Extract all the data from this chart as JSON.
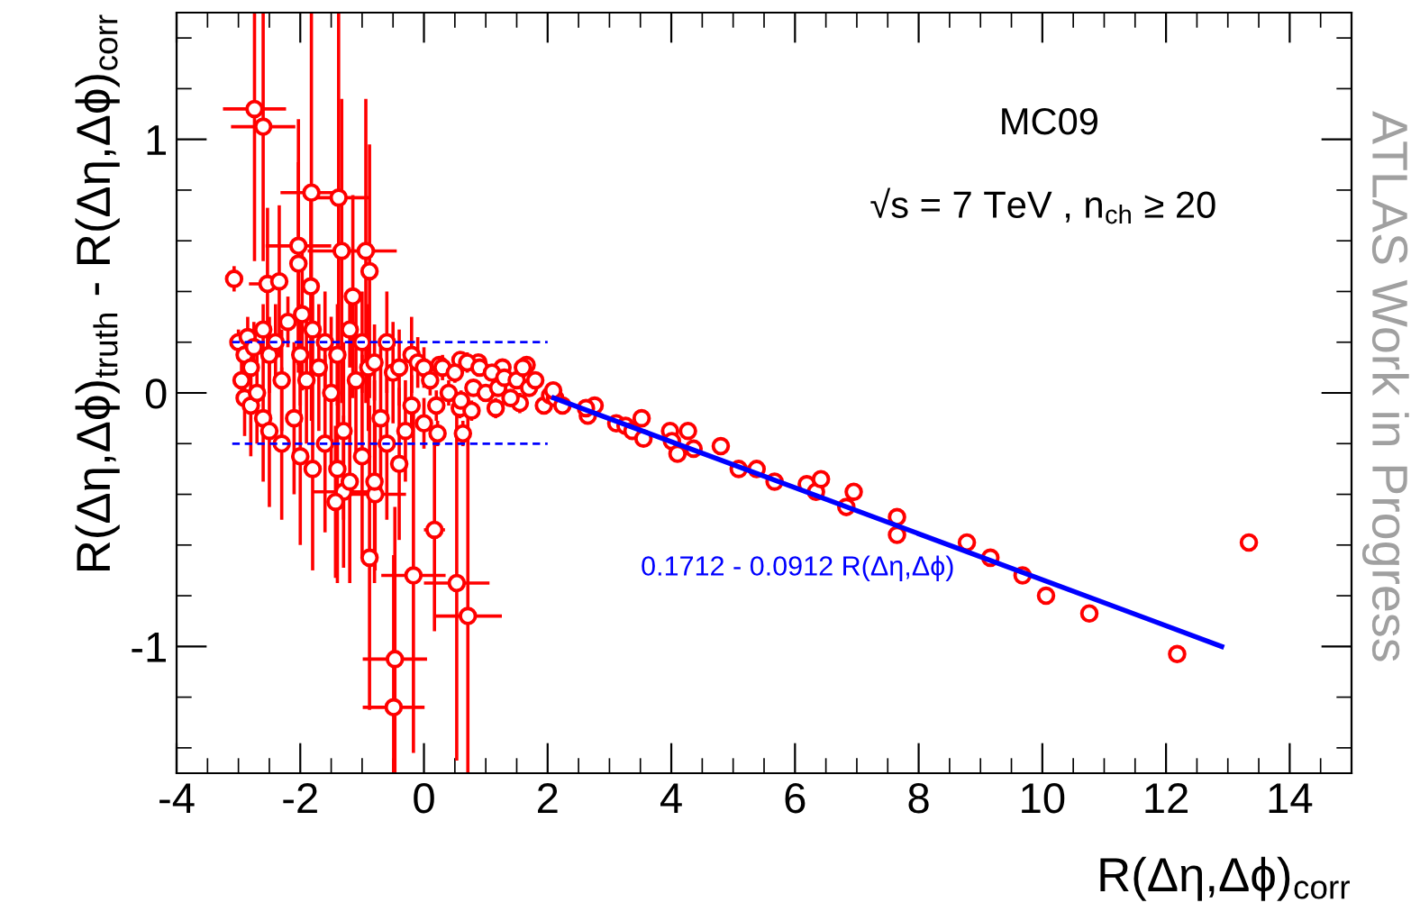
{
  "chart_data": {
    "type": "scatter",
    "xlabel": "R(Δη,Δϕ)$_{corr}$",
    "ylabel": "R(Δη,Δϕ)$_{truth}$ - R(Δη,Δϕ)$_{corr}$",
    "xlim": [
      -4,
      15
    ],
    "ylim": [
      -1.5,
      1.5
    ],
    "xticks": [
      -4,
      -2,
      0,
      2,
      4,
      6,
      8,
      10,
      12,
      14
    ],
    "yticks": [
      -1,
      0,
      1
    ],
    "grid": false,
    "legend": false,
    "marker": "circle",
    "annotations": [
      "MC09",
      "√s = 7 TeV , n$_{ch}$ ≥ 20",
      "0.1712 - 0.0912 R(Δη,Δϕ)",
      "ATLAS Work in Progress"
    ],
    "series": [
      {
        "color": "#ff0000",
        "x": [
          -2.74,
          -2.6,
          -3.07,
          -1.82,
          -1.38,
          -2.03,
          -2.03,
          -1.33,
          -0.94,
          -0.88,
          -1.15,
          -2.53,
          -2.34,
          -1.83,
          -1.97,
          -0.88,
          -0.17,
          0.17,
          0.53,
          0.71,
          -0.47,
          -0.49,
          -1.3,
          -0.79,
          -1.43,
          0.63,
          0.22,
          0.58,
          0.77,
          1.16,
          1.55,
          1.94,
          2.04,
          1.66,
          1.27,
          0.88,
          0.59,
          0.25,
          -3.0,
          -2.95,
          -2.9,
          -2.9,
          -2.85,
          -2.8,
          -2.8,
          -2.75,
          -2.7,
          -2.6,
          -2.6,
          -2.5,
          -2.5,
          -2.4,
          -2.3,
          -2.3,
          -2.2,
          -2.1,
          -2.0,
          -2.0,
          -1.9,
          -1.8,
          -1.8,
          -1.7,
          -1.6,
          -1.6,
          -1.5,
          -1.4,
          -1.4,
          -1.3,
          -1.2,
          -1.2,
          -1.1,
          -1.0,
          -1.0,
          -0.9,
          -0.8,
          -0.8,
          -0.7,
          -0.6,
          -0.6,
          -0.5,
          -0.4,
          -0.4,
          -0.3,
          -0.2,
          -0.2,
          -0.1,
          0.0,
          0.0,
          0.1,
          0.2,
          0.3,
          0.4,
          0.5,
          0.6,
          0.7,
          0.8,
          0.9,
          1.0,
          1.1,
          1.2,
          1.3,
          1.4,
          1.5,
          1.6,
          1.7,
          1.8,
          2.12,
          2.09,
          2.24,
          2.65,
          2.76,
          2.62,
          3.11,
          3.26,
          3.37,
          3.52,
          3.55,
          3.98,
          4.01,
          4.1,
          4.27,
          4.36,
          4.8,
          5.09,
          5.38,
          5.67,
          6.19,
          6.34,
          6.42,
          6.83,
          6.95,
          7.65,
          7.65,
          8.78,
          9.16,
          9.68,
          10.06,
          10.76,
          12.18,
          13.34
        ],
        "values": [
          1.12,
          1.05,
          0.45,
          0.79,
          0.77,
          0.58,
          0.51,
          0.56,
          0.56,
          0.48,
          0.38,
          0.43,
          0.44,
          0.42,
          0.31,
          -0.65,
          -0.72,
          -0.54,
          -0.75,
          -0.88,
          -1.05,
          -1.24,
          -0.39,
          -0.4,
          -0.43,
          -0.16,
          -0.16,
          -0.06,
          -0.07,
          -0.06,
          -0.04,
          -0.05,
          -0.01,
          0.11,
          0.1,
          0.12,
          0.13,
          0.11,
          0.2,
          0.05,
          0.15,
          -0.02,
          0.22,
          0.1,
          -0.05,
          0.18,
          0.0,
          0.25,
          -0.1,
          0.15,
          -0.15,
          0.2,
          0.05,
          -0.2,
          0.28,
          -0.1,
          0.15,
          -0.25,
          0.05,
          0.25,
          -0.3,
          0.1,
          -0.2,
          0.2,
          0.0,
          -0.3,
          0.15,
          -0.15,
          0.25,
          -0.35,
          0.05,
          0.2,
          -0.25,
          0.1,
          -0.35,
          0.12,
          -0.1,
          0.2,
          -0.2,
          0.08,
          -0.28,
          0.1,
          -0.15,
          0.15,
          -0.05,
          0.12,
          -0.12,
          0.1,
          0.05,
          -0.05,
          0.1,
          0.0,
          0.08,
          -0.03,
          0.12,
          0.02,
          0.1,
          0.0,
          0.08,
          0.02,
          0.06,
          -0.02,
          0.05,
          0.1,
          0.02,
          0.05,
          -0.02,
          0.01,
          -0.05,
          -0.09,
          -0.05,
          -0.06,
          -0.12,
          -0.13,
          -0.15,
          -0.1,
          -0.18,
          -0.15,
          -0.19,
          -0.24,
          -0.15,
          -0.22,
          -0.21,
          -0.3,
          -0.3,
          -0.35,
          -0.36,
          -0.39,
          -0.34,
          -0.45,
          -0.39,
          -0.49,
          -0.56,
          -0.59,
          -0.65,
          -0.72,
          -0.8,
          -0.87,
          -1.03,
          -0.59
        ],
        "errors": [
          [
            0.52,
            1.5
          ],
          [
            0.52,
            1.5
          ],
          0.05,
          [
            -0.11,
            1.5
          ],
          [
            -0.13,
            1.5
          ],
          0.5,
          0.4,
          0.6,
          0.6,
          0.5,
          0.4,
          0.3,
          0.3,
          0.4,
          0.3,
          0.6,
          0.7,
          0.4,
          0.7,
          0.8,
          0.6,
          0.6,
          0.3,
          0.3,
          0.3,
          0.05,
          0.05,
          0.04,
          0.04,
          0.04,
          0.04,
          0.03,
          0.03,
          0.03,
          0.03,
          0.03,
          0.03,
          0.03,
          0.05,
          0.1,
          0.08,
          0.15,
          0.08,
          0.1,
          0.2,
          0.1,
          0.2,
          0.1,
          0.25,
          0.15,
          0.3,
          0.15,
          0.2,
          0.3,
          0.1,
          0.3,
          0.2,
          0.35,
          0.25,
          0.15,
          0.4,
          0.25,
          0.35,
          0.2,
          0.3,
          0.45,
          0.2,
          0.35,
          0.15,
          0.4,
          0.3,
          0.2,
          0.4,
          0.25,
          0.4,
          0.15,
          0.3,
          0.2,
          0.3,
          0.2,
          0.3,
          0.15,
          0.2,
          0.15,
          0.12,
          0.1,
          0.1,
          0.08,
          0.06,
          0.06,
          0.05,
          0.05,
          0.04,
          0.04,
          0.04,
          0.03,
          0.03,
          0.03,
          0.03,
          0.03,
          0.03,
          0.03,
          0.03,
          0.03,
          0.03,
          0.03,
          0.02,
          0.02,
          0.02,
          0.02,
          0.02,
          0.02,
          0.02,
          0.02,
          0.02,
          0.02,
          0.02,
          0.02,
          0.02,
          0.02,
          0.02,
          0.02,
          0.02,
          0.02,
          0.02,
          0.02,
          0.02,
          0.02,
          0.02,
          0.02,
          0.02,
          0.03,
          0.03,
          0.03,
          0.03,
          0.03,
          0.03,
          0.03,
          0.03,
          0.03
        ],
        "xerrors": [
          0.51,
          0.52,
          null,
          0.5,
          0.5,
          0.53,
          null,
          0.55,
          0.5,
          null,
          null,
          0.3,
          null,
          null,
          null,
          null,
          0.52,
          0.17,
          0.53,
          0.55,
          0.52,
          0.5,
          0.5,
          0.5,
          null,
          null,
          null,
          null,
          null,
          null,
          null,
          null,
          null,
          null,
          null,
          null,
          null,
          null,
          null,
          null,
          null,
          null,
          null,
          null,
          null,
          null,
          null,
          null,
          null,
          null,
          null,
          null,
          null,
          null,
          null,
          null,
          null,
          null,
          null,
          null,
          null,
          null,
          null,
          null,
          null,
          null,
          null,
          null,
          null,
          null,
          null,
          null,
          null,
          null,
          null,
          null,
          null,
          null,
          null,
          null,
          null,
          null,
          null,
          null,
          null,
          null,
          null,
          null,
          null,
          null,
          null,
          null,
          null,
          null,
          null,
          null,
          null,
          null,
          null,
          null,
          null,
          null,
          null,
          null,
          null,
          null,
          null,
          null,
          null,
          null,
          null,
          null,
          null,
          null,
          null,
          null,
          null,
          null,
          null,
          null,
          null,
          null,
          null,
          null,
          null,
          null,
          null,
          null,
          null,
          null,
          null,
          null,
          null,
          null,
          null,
          null,
          null,
          null,
          null,
          null
        ]
      },
      {
        "type": "line",
        "marker": "none",
        "color": "#0000ff",
        "line_style": "solid",
        "x": [
          2.1,
          12.9
        ],
        "values": [
          -0.02,
          -1.0
        ]
      },
      {
        "type": "line",
        "marker": "none",
        "color": "#0000ff",
        "line_style": "dashed",
        "x": [
          -3.1,
          2.0
        ],
        "values": [
          0.2,
          0.2
        ]
      },
      {
        "type": "line",
        "marker": "none",
        "color": "#0000ff",
        "line_style": "dashed",
        "x": [
          -3.1,
          2.0
        ],
        "values": [
          -0.2,
          -0.2
        ]
      }
    ]
  }
}
